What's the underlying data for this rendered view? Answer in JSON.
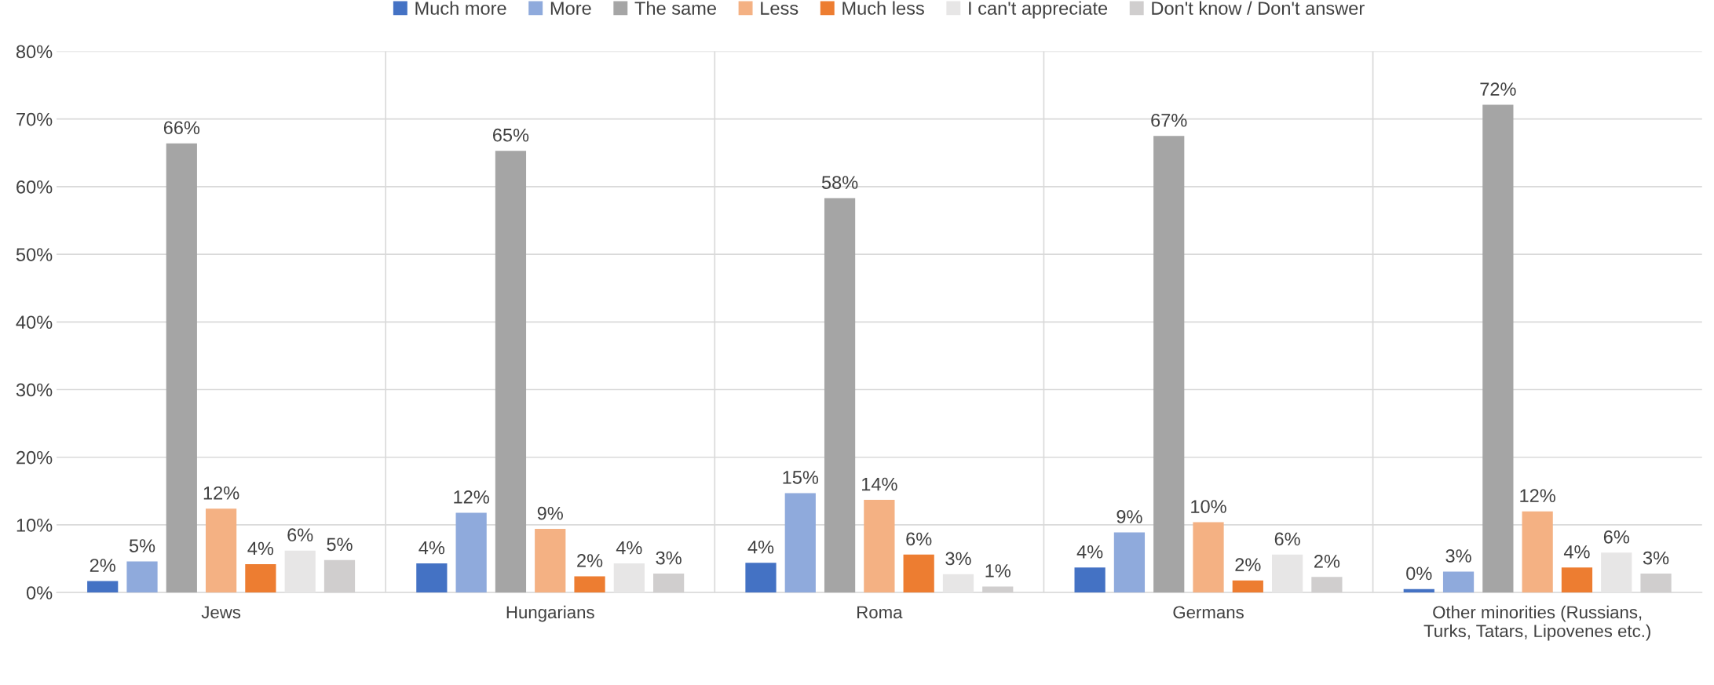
{
  "chart_data": {
    "type": "bar",
    "categories": [
      "Jews",
      "Hungarians",
      "Roma",
      "Germans",
      "Other minorities (Russians,\nTurks, Tatars, Lipovenes etc.)"
    ],
    "series": [
      {
        "name": "Much more",
        "color": "#4472c4",
        "values": [
          1.7,
          4.3,
          4.4,
          3.7,
          0.5
        ],
        "value_labels": [
          "2%",
          "4%",
          "4%",
          "4%",
          "0%"
        ]
      },
      {
        "name": "More",
        "color": "#8faadc",
        "values": [
          4.6,
          11.8,
          14.7,
          8.9,
          3.1
        ],
        "value_labels": [
          "5%",
          "12%",
          "15%",
          "9%",
          "3%"
        ]
      },
      {
        "name": "The same",
        "color": "#a5a5a5",
        "values": [
          66.4,
          65.3,
          58.3,
          67.5,
          72.1
        ],
        "value_labels": [
          "66%",
          "65%",
          "58%",
          "67%",
          "72%"
        ]
      },
      {
        "name": "Less",
        "color": "#f4b183",
        "values": [
          12.4,
          9.4,
          13.7,
          10.4,
          12.0
        ],
        "value_labels": [
          "12%",
          "9%",
          "14%",
          "10%",
          "12%"
        ]
      },
      {
        "name": "Much less",
        "color": "#ed7d31",
        "values": [
          4.2,
          2.4,
          5.6,
          1.8,
          3.7
        ],
        "value_labels": [
          "4%",
          "2%",
          "6%",
          "2%",
          "4%"
        ]
      },
      {
        "name": "I can't appreciate",
        "color": "#e7e6e6",
        "values": [
          6.2,
          4.3,
          2.7,
          5.6,
          5.9
        ],
        "value_labels": [
          "6%",
          "4%",
          "3%",
          "6%",
          "6%"
        ]
      },
      {
        "name": "Don't know / Don't answer",
        "color": "#d0cece",
        "values": [
          4.8,
          2.8,
          0.9,
          2.3,
          2.8
        ],
        "value_labels": [
          "5%",
          "3%",
          "1%",
          "2%",
          "3%"
        ]
      }
    ],
    "ylim": [
      0,
      80
    ],
    "yticks": [
      {
        "value": 0,
        "label": "0%"
      },
      {
        "value": 10,
        "label": "10%"
      },
      {
        "value": 20,
        "label": "20%"
      },
      {
        "value": 30,
        "label": "30%"
      },
      {
        "value": 40,
        "label": "40%"
      },
      {
        "value": 50,
        "label": "50%"
      },
      {
        "value": 60,
        "label": "60%"
      },
      {
        "value": 70,
        "label": "70%"
      },
      {
        "value": 80,
        "label": "80%"
      }
    ],
    "grid": true,
    "legend": "top"
  }
}
